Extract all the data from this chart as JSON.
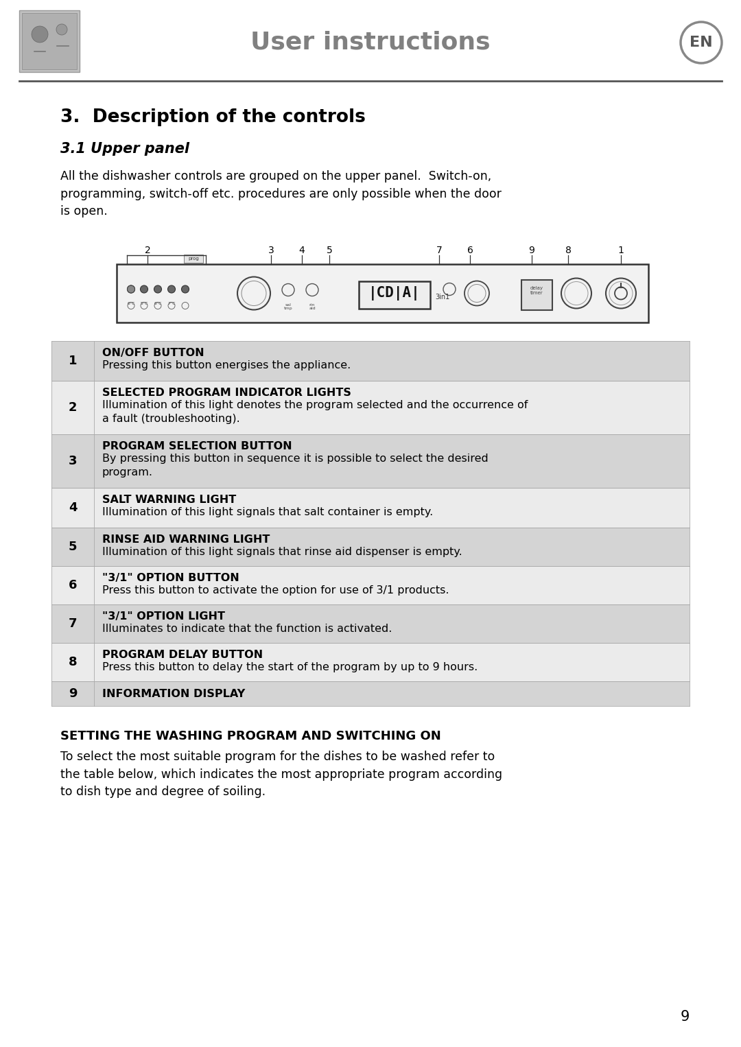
{
  "title": "User instructions",
  "en_badge": "EN",
  "section_title": "3.  Description of the controls",
  "subsection_title": "3.1 Upper panel",
  "intro_text": "All the dishwasher controls are grouped on the upper panel.  Switch-on,\nprogramming, switch-off etc. procedures are only possible when the door\nis open.",
  "table_rows": [
    {
      "num": "1",
      "bold": "ON/OFF BUTTON",
      "normal": "Pressing this button energises the appliance.",
      "shaded": true
    },
    {
      "num": "2",
      "bold": "SELECTED PROGRAM INDICATOR LIGHTS",
      "normal": "Illumination of this light denotes the program selected and the occurrence of\na fault (troubleshooting).",
      "shaded": false
    },
    {
      "num": "3",
      "bold": "PROGRAM SELECTION BUTTON",
      "normal": "By pressing this button in sequence it is possible to select the desired\nprogram.",
      "shaded": true
    },
    {
      "num": "4",
      "bold": "SALT WARNING LIGHT",
      "normal": "Illumination of this light signals that salt container is empty.",
      "shaded": false
    },
    {
      "num": "5",
      "bold": "RINSE AID WARNING LIGHT",
      "normal": "Illumination of this light signals that rinse aid dispenser is empty.",
      "shaded": true
    },
    {
      "num": "6",
      "bold": "\"3/1\" OPTION BUTTON",
      "normal": "Press this button to activate the option for use of 3/1 products.",
      "shaded": false
    },
    {
      "num": "7",
      "bold": "\"3/1\" OPTION LIGHT",
      "normal": "Illuminates to indicate that the function is activated.",
      "shaded": true
    },
    {
      "num": "8",
      "bold": "PROGRAM DELAY BUTTON",
      "normal": "Press this button to delay the start of the program by up to 9 hours.",
      "shaded": false
    },
    {
      "num": "9",
      "bold": "INFORMATION DISPLAY",
      "normal": "",
      "shaded": true
    }
  ],
  "setting_title": "SETTING THE WASHING PROGRAM AND SWITCHING ON",
  "setting_text": "To select the most suitable program for the dishes to be washed refer to\nthe table below, which indicates the most appropriate program according\nto dish type and degree of soiling.",
  "page_number": "9",
  "bg_color": "#ffffff",
  "shaded_color": "#d4d4d4",
  "unshaded_color": "#ebebeb",
  "header_line_color": "#333333",
  "text_color": "#000000",
  "title_color": "#808080"
}
